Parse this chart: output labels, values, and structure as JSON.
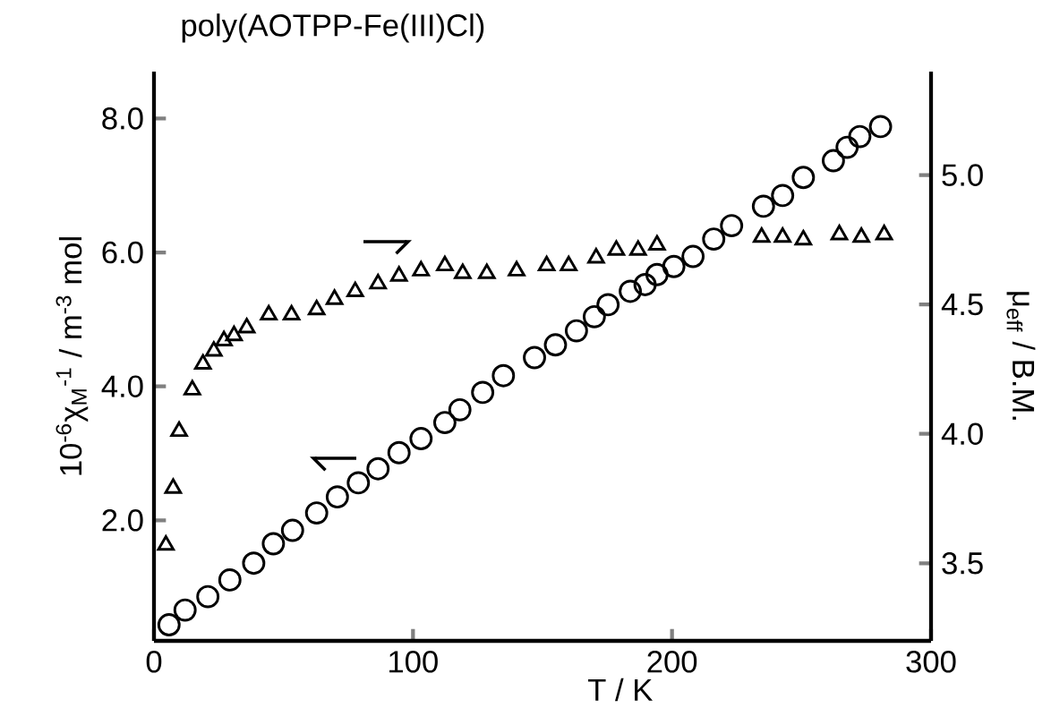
{
  "chart_data": {
    "type": "scatter",
    "title": "poly(AOTPP-Fe(III)Cl)",
    "xlabel": "T / K",
    "ylabel": "10$^{-6}$χ$_{M}$$^{-1}$ / m$^{-3}$ mol",
    "y2label": "μ$_{eff}$ / B.M.",
    "xlim": [
      0,
      300
    ],
    "xticks": [
      0,
      100,
      200,
      300
    ],
    "ylim": [
      0.2,
      8.7
    ],
    "yticks": [
      {
        "value": 2,
        "label": "2.0"
      },
      {
        "value": 4,
        "label": "4.0"
      },
      {
        "value": 6,
        "label": "6.0"
      },
      {
        "value": 8,
        "label": "8.0"
      }
    ],
    "y2lim": [
      3.2,
      5.4
    ],
    "y2ticks": [
      3.5,
      {
        "value": 4,
        "label": "4.0"
      },
      4.5,
      {
        "value": 5,
        "label": "5.0"
      }
    ],
    "grid": false,
    "series": [
      {
        "color": "#000000",
        "marker": "circle",
        "x": [
          5.8,
          12.0,
          20.8,
          29.3,
          38.5,
          46.1,
          53.5,
          62.8,
          70.8,
          78.9,
          86.5,
          94.6,
          103.1,
          112.3,
          118.1,
          126.9,
          134.9,
          146.9,
          155.0,
          163.1,
          170.0,
          175.3,
          183.9,
          189.6,
          194.2,
          200.7,
          208.1,
          216.1,
          223.0,
          235.3,
          242.7,
          250.7,
          262.3,
          267.6,
          272.5,
          280.5
        ],
        "values": [
          0.44,
          0.66,
          0.86,
          1.11,
          1.36,
          1.65,
          1.85,
          2.11,
          2.35,
          2.56,
          2.77,
          3.01,
          3.22,
          3.46,
          3.65,
          3.91,
          4.16,
          4.43,
          4.62,
          4.83,
          5.04,
          5.22,
          5.42,
          5.52,
          5.67,
          5.79,
          5.94,
          6.2,
          6.4,
          6.69,
          6.85,
          7.12,
          7.37,
          7.57,
          7.73,
          7.88
        ]
      },
      {
        "color": "#000000",
        "marker": "triangle",
        "axis": "y2",
        "x": [
          4.6,
          7.4,
          9.7,
          14.8,
          18.9,
          23.1,
          27.0,
          30.9,
          35.8,
          44.3,
          53.1,
          62.8,
          69.7,
          77.7,
          86.5,
          94.6,
          103.1,
          112.3,
          119.2,
          128.5,
          140.0,
          151.6,
          160.1,
          170.7,
          178.5,
          186.9,
          194.2,
          234.6,
          242.7,
          250.7,
          264.6,
          273.1,
          281.9
        ],
        "values": [
          3.57,
          3.79,
          4.01,
          4.17,
          4.27,
          4.32,
          4.36,
          4.38,
          4.41,
          4.46,
          4.46,
          4.48,
          4.52,
          4.55,
          4.58,
          4.61,
          4.63,
          4.65,
          4.62,
          4.62,
          4.63,
          4.65,
          4.65,
          4.68,
          4.71,
          4.71,
          4.73,
          4.76,
          4.76,
          4.75,
          4.77,
          4.76,
          4.77
        ]
      }
    ]
  }
}
